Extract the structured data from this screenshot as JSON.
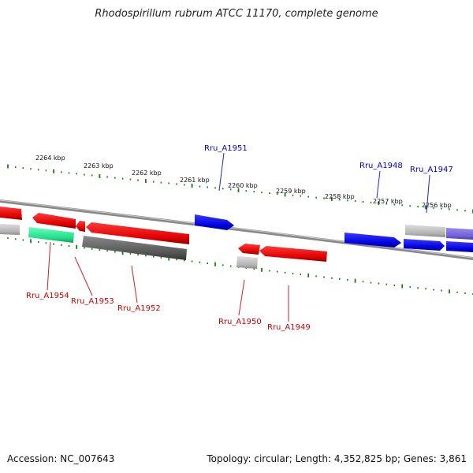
{
  "header": {
    "title": "Rhodospirillum rubrum ATCC 11170, complete genome"
  },
  "footer": {
    "accession": "Accession: NC_007643",
    "summary": "Topology: circular; Length: 4,352,825 bp; Genes: 3,861"
  },
  "colors": {
    "forward_gene": "#0000ee",
    "reverse_gene": "#ee0000",
    "tick": "#1a7a1a",
    "backbone": "#888888",
    "forward_label": "#0000cc",
    "reverse_label": "#cc0000"
  },
  "kbp_labels": [
    "2264 kbp",
    "2263 kbp",
    "2262 kbp",
    "2261 kbp",
    "2260 kbp",
    "2259 kbp",
    "2258 kbp",
    "2257 kbp",
    "2256 kbp"
  ],
  "forward_genes": [
    "Rru_A1951",
    "Rru_A1948",
    "Rru_A1947"
  ],
  "reverse_genes": [
    "Rru_A1954",
    "Rru_A1953",
    "Rru_A1952",
    "Rru_A1950",
    "Rru_A1949"
  ]
}
